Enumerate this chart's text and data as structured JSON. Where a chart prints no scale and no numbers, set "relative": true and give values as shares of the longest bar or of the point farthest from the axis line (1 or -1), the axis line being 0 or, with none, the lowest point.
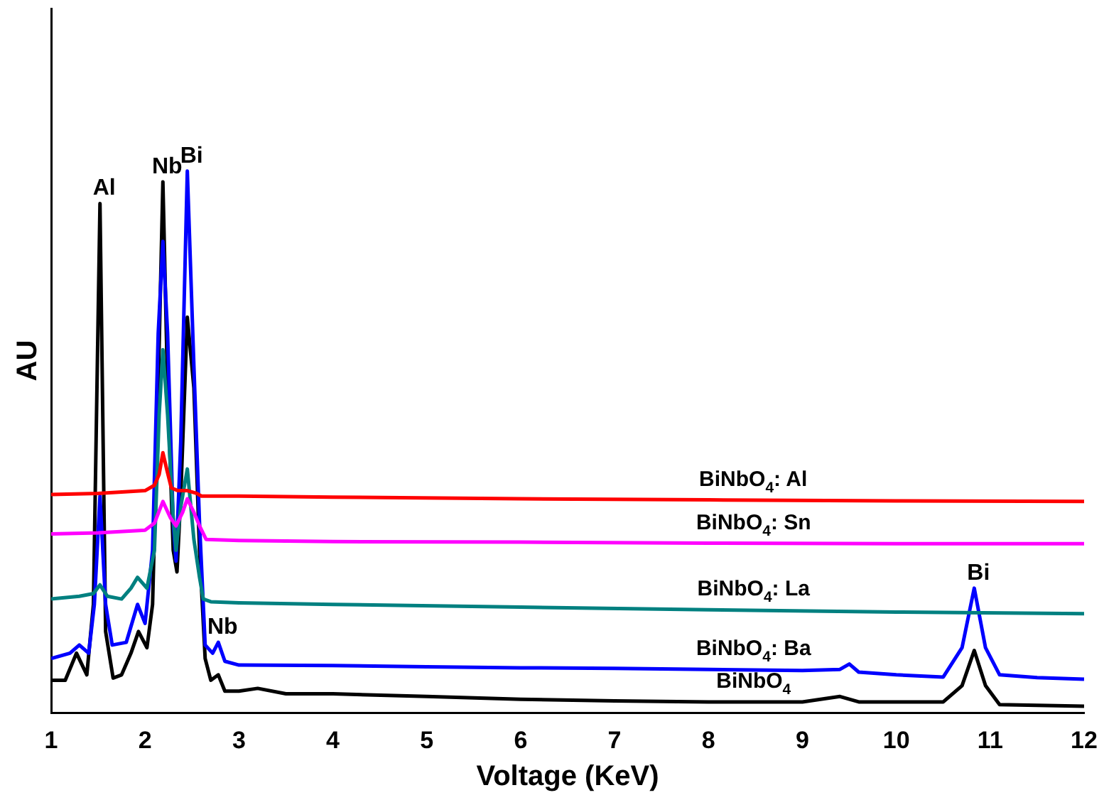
{
  "chart_data": {
    "type": "line",
    "xlabel": "Voltage (KeV)",
    "ylabel": "AU",
    "relative": true,
    "xlim": [
      1,
      12
    ],
    "xticks": [
      1,
      2,
      3,
      4,
      5,
      6,
      7,
      8,
      9,
      10,
      11,
      12
    ],
    "grid": false,
    "legend": false,
    "marker": "none",
    "line_style": "solid",
    "series": [
      {
        "name": "BiNbO$_{4}$: Al",
        "color": "#ff0000",
        "x": [
          1,
          1.5,
          2,
          2.1,
          2.15,
          2.19,
          2.23,
          2.28,
          2.35,
          2.45,
          2.55,
          2.6,
          3,
          4,
          6,
          8,
          10,
          12
        ],
        "values": [
          0.403,
          0.405,
          0.41,
          0.42,
          0.44,
          0.48,
          0.45,
          0.415,
          0.41,
          0.41,
          0.405,
          0.4,
          0.4,
          0.398,
          0.395,
          0.393,
          0.391,
          0.39
        ]
      },
      {
        "name": "BiNbO$_{4}$: Sn",
        "color": "#ff00ff",
        "x": [
          1,
          1.5,
          2,
          2.1,
          2.19,
          2.27,
          2.33,
          2.4,
          2.45,
          2.52,
          2.58,
          2.65,
          3,
          4,
          6,
          8,
          10,
          12
        ],
        "values": [
          0.33,
          0.332,
          0.337,
          0.35,
          0.39,
          0.36,
          0.345,
          0.37,
          0.395,
          0.37,
          0.345,
          0.32,
          0.318,
          0.316,
          0.315,
          0.313,
          0.312,
          0.312
        ]
      },
      {
        "name": "BiNbO$_{4}$: La",
        "color": "#008080",
        "x": [
          1,
          1.3,
          1.45,
          1.52,
          1.6,
          1.75,
          1.85,
          1.92,
          2.02,
          2.1,
          2.15,
          2.19,
          2.24,
          2.3,
          2.33,
          2.38,
          2.45,
          2.52,
          2.58,
          2.62,
          2.7,
          3,
          4,
          6,
          8,
          10,
          12
        ],
        "values": [
          0.21,
          0.215,
          0.22,
          0.236,
          0.215,
          0.21,
          0.23,
          0.25,
          0.23,
          0.3,
          0.55,
          0.67,
          0.55,
          0.36,
          0.3,
          0.38,
          0.45,
          0.32,
          0.25,
          0.21,
          0.205,
          0.203,
          0.2,
          0.195,
          0.19,
          0.186,
          0.183
        ]
      },
      {
        "name": "BiNbO$_{4}$: Ba",
        "color": "#0000ff",
        "x": [
          1,
          1.2,
          1.3,
          1.4,
          1.46,
          1.52,
          1.58,
          1.65,
          1.8,
          1.92,
          2.0,
          2.08,
          2.14,
          2.19,
          2.24,
          2.3,
          2.33,
          2.38,
          2.45,
          2.52,
          2.58,
          2.64,
          2.72,
          2.78,
          2.85,
          3,
          4,
          5,
          6,
          7,
          8,
          9,
          9.4,
          9.5,
          9.6,
          10,
          10.5,
          10.7,
          10.83,
          10.95,
          11.1,
          11.5,
          12
        ],
        "values": [
          0.1,
          0.11,
          0.125,
          0.11,
          0.2,
          0.4,
          0.2,
          0.125,
          0.13,
          0.2,
          0.165,
          0.3,
          0.7,
          0.87,
          0.7,
          0.35,
          0.28,
          0.5,
          1.0,
          0.64,
          0.35,
          0.125,
          0.11,
          0.13,
          0.095,
          0.088,
          0.087,
          0.085,
          0.083,
          0.082,
          0.08,
          0.078,
          0.08,
          0.09,
          0.075,
          0.07,
          0.066,
          0.12,
          0.23,
          0.12,
          0.07,
          0.065,
          0.062
        ]
      },
      {
        "name": "BiNbO$_{4}$",
        "color": "#000000",
        "x": [
          1,
          1.15,
          1.27,
          1.38,
          1.45,
          1.52,
          1.58,
          1.66,
          1.75,
          1.85,
          1.93,
          2.02,
          2.08,
          2.14,
          2.19,
          2.24,
          2.3,
          2.34,
          2.38,
          2.45,
          2.52,
          2.58,
          2.64,
          2.7,
          2.78,
          2.85,
          3,
          3.2,
          3.5,
          4,
          5,
          6,
          7,
          8,
          9,
          9.4,
          9.6,
          10.5,
          10.7,
          10.83,
          10.95,
          11.1,
          12
        ],
        "values": [
          0.06,
          0.06,
          0.11,
          0.07,
          0.2,
          0.94,
          0.15,
          0.064,
          0.07,
          0.11,
          0.15,
          0.12,
          0.2,
          0.6,
          0.98,
          0.6,
          0.3,
          0.26,
          0.4,
          0.73,
          0.6,
          0.3,
          0.1,
          0.06,
          0.07,
          0.04,
          0.04,
          0.045,
          0.035,
          0.035,
          0.03,
          0.025,
          0.022,
          0.02,
          0.02,
          0.03,
          0.02,
          0.02,
          0.05,
          0.115,
          0.05,
          0.015,
          0.012
        ]
      }
    ],
    "annotations": [
      {
        "text": "Al",
        "x": 1.52,
        "y": 0.94
      },
      {
        "text": "Nb",
        "x": 2.19,
        "y": 0.98
      },
      {
        "text": "Bi",
        "x": 2.45,
        "y": 1.0
      },
      {
        "text": "Nb",
        "x": 2.78,
        "y": 0.13
      },
      {
        "text": "Bi",
        "x": 10.83,
        "y": 0.23
      }
    ]
  }
}
